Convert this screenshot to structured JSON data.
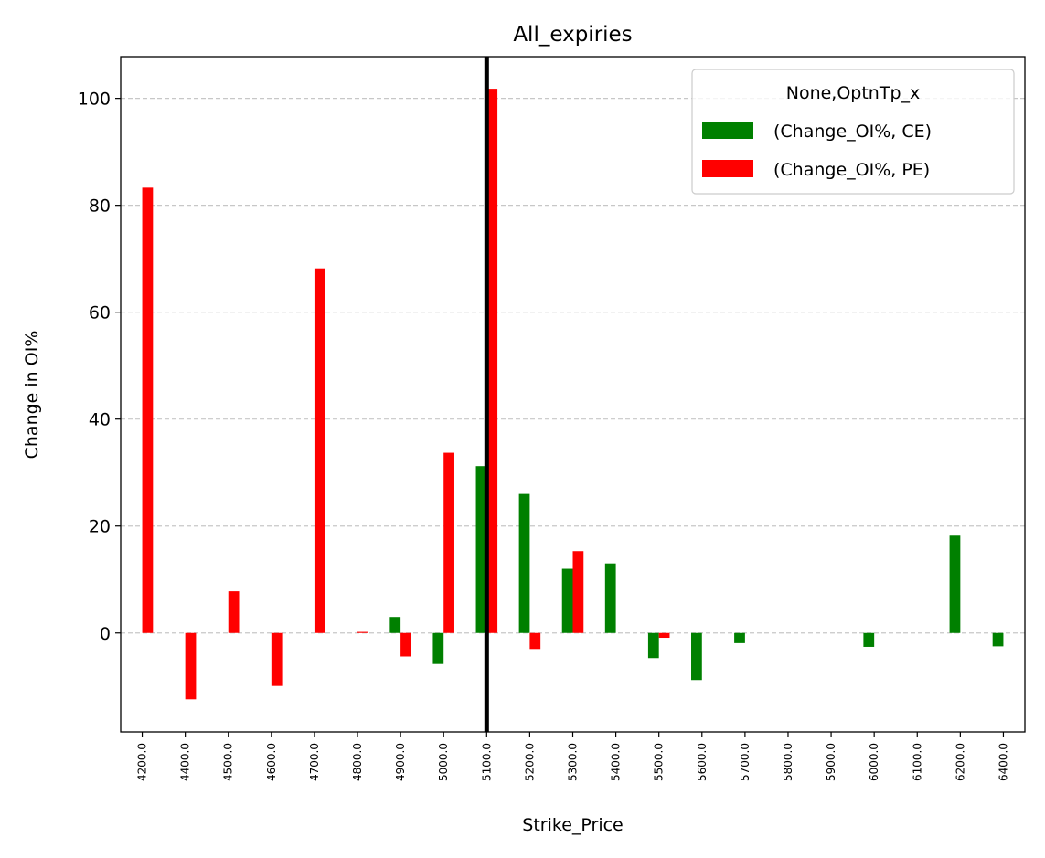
{
  "chart_data": {
    "type": "bar",
    "title": "All_expiries",
    "xlabel": "Strike_Price",
    "ylabel": "Change in OI%",
    "categories": [
      "4200.0",
      "4400.0",
      "4500.0",
      "4600.0",
      "4700.0",
      "4800.0",
      "4900.0",
      "5000.0",
      "5100.0",
      "5200.0",
      "5300.0",
      "5400.0",
      "5500.0",
      "5600.0",
      "5700.0",
      "5800.0",
      "5900.0",
      "6000.0",
      "6100.0",
      "6200.0",
      "6400.0"
    ],
    "series": [
      {
        "name": "(Change_OI%, CE)",
        "color": "#008000",
        "values": [
          0,
          0,
          0,
          0,
          0,
          0,
          3.0,
          -5.8,
          31.2,
          26.0,
          12.0,
          13.0,
          -4.7,
          -8.8,
          -1.9,
          0,
          0,
          -2.6,
          0,
          18.2,
          -2.5
        ]
      },
      {
        "name": "(Change_OI%, PE)",
        "color": "#ff0000",
        "values": [
          83.3,
          -12.4,
          7.8,
          -9.9,
          68.2,
          0.2,
          -4.4,
          33.7,
          101.8,
          -3.0,
          15.3,
          0,
          -0.9,
          0,
          0,
          0,
          0,
          0,
          0,
          0,
          0
        ]
      }
    ],
    "yticks": [
      0,
      20,
      40,
      60,
      80,
      100
    ],
    "ylim": [
      -18.5,
      107.8
    ],
    "grid": "y-dashed",
    "vline_category": "5100.0",
    "legend": {
      "title": "None,OptnTp_x",
      "placement": "top-right"
    }
  }
}
